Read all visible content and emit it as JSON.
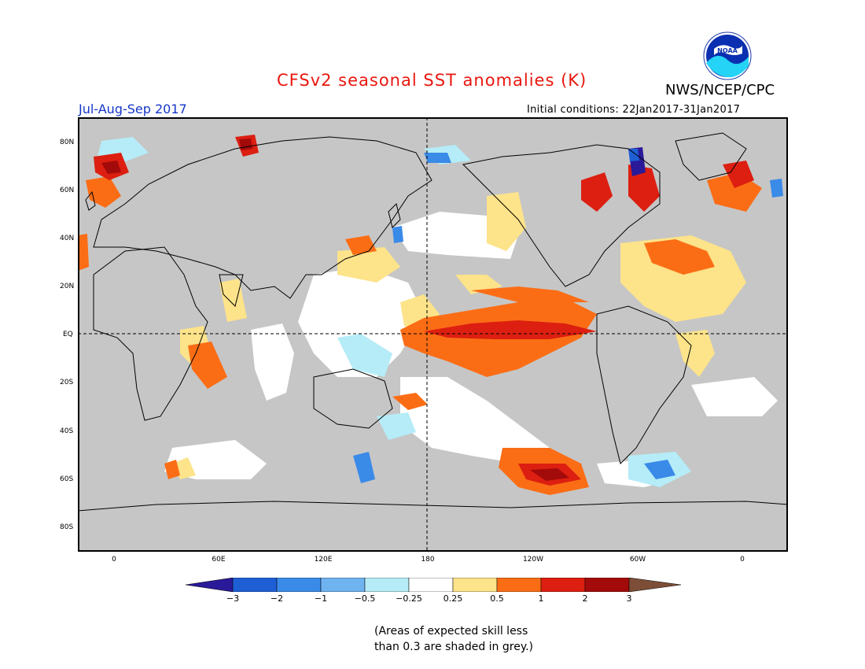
{
  "header": {
    "title": "CFSv2 seasonal SST anomalies (K)",
    "agency": "NWS/NCEP/CPC",
    "season": "Jul-Aug-Sep 2017",
    "initial_conditions": "Initial conditions: 22Jan2017-31Jan2017",
    "logo_icon": "noaa-logo-icon",
    "logo_text": "NOAA"
  },
  "map": {
    "land_color": "#ffffff",
    "low_skill_color": "#c6c6c6",
    "lat_labels": [
      "80N",
      "60N",
      "40N",
      "20N",
      "EQ",
      "20S",
      "40S",
      "60S",
      "80S"
    ],
    "lon_labels": [
      "0",
      "60E",
      "120E",
      "180",
      "120W",
      "60W",
      "0"
    ]
  },
  "colorbar": {
    "labels": [
      "−3",
      "−2",
      "−1",
      "−0.5",
      "−0.25",
      "0.25",
      "0.5",
      "1",
      "2",
      "3"
    ],
    "colors": [
      "#2a1a99",
      "#1f5fd6",
      "#3a8ae8",
      "#6fb3f0",
      "#b5ecf7",
      "#ffffff",
      "#fde38a",
      "#fb6d15",
      "#dc1f11",
      "#a30a0a",
      "#7d4e37"
    ]
  },
  "footnote": {
    "line1": "(Areas of expected skill less",
    "line2": "than 0.3 are shaded in grey.)"
  }
}
